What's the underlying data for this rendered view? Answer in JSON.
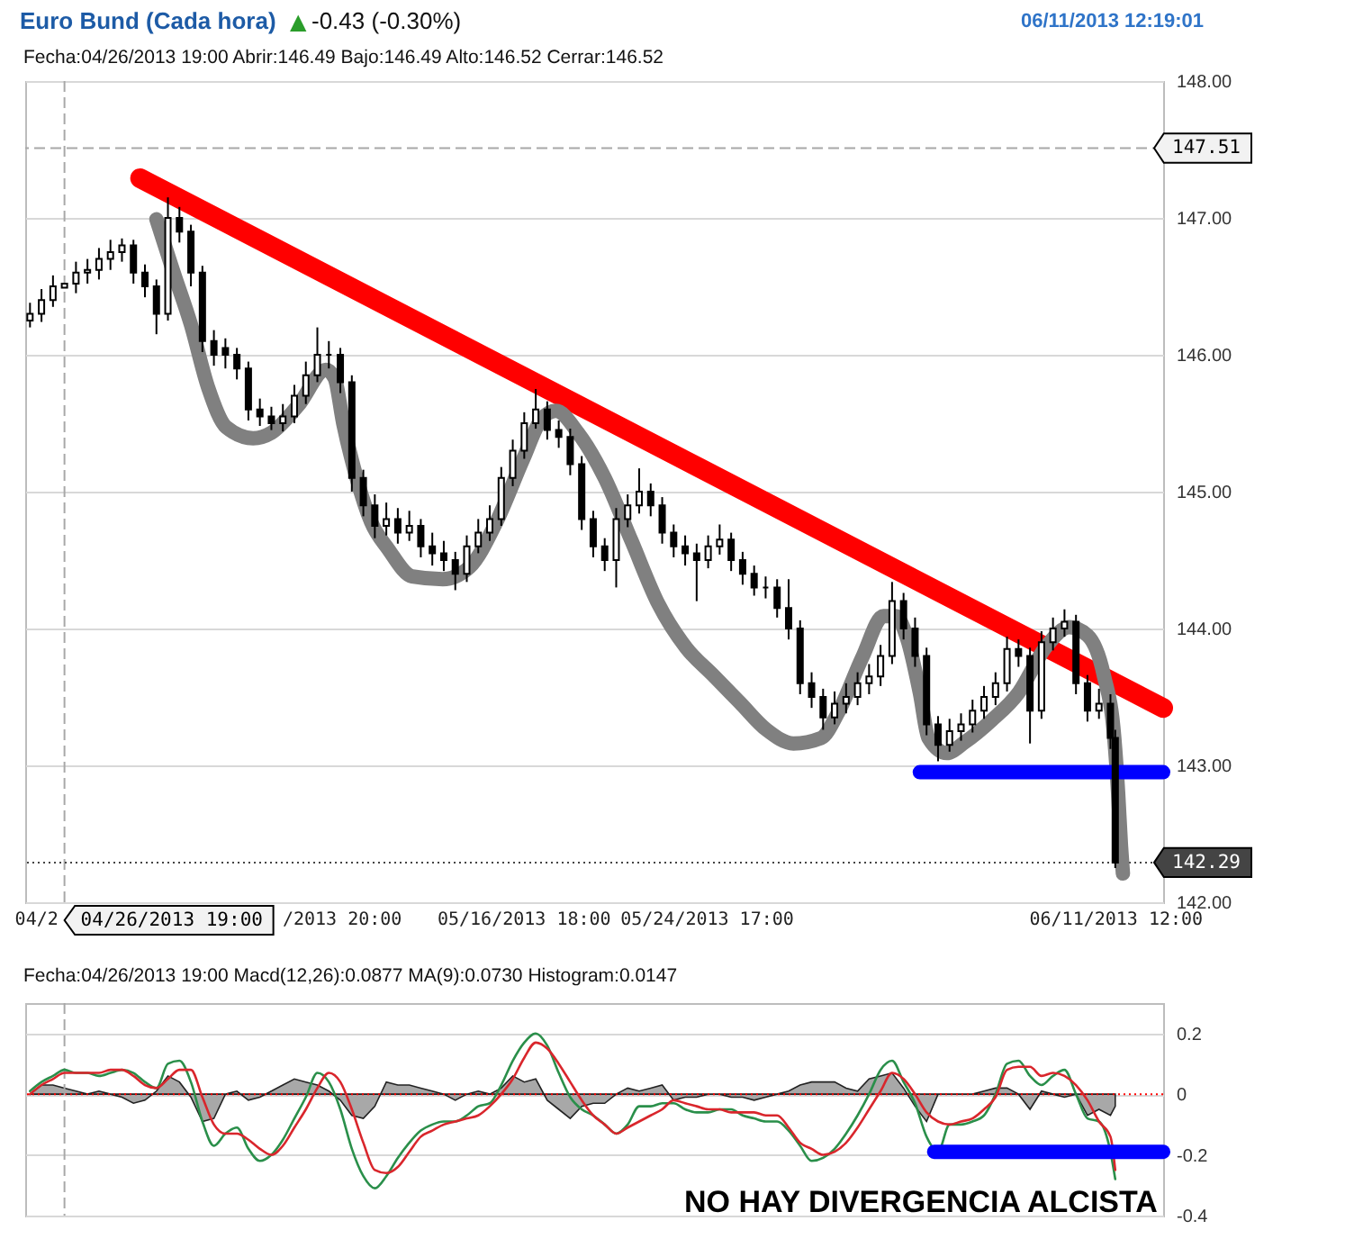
{
  "chart_data": [
    {
      "type": "candlestick",
      "title": "Euro Bund (Cada hora)",
      "subtitle": "▲ -0.43 (-0.30%)",
      "annotations": [
        "06/11/2013 12:19:01",
        "Fecha:04/26/2013 19:00 Abrir:146.49 Bajo:146.49 Alto:146.52 Cerrar:146.52"
      ],
      "color": "#000000",
      "x": [
        "2013-04-25T07:00",
        "2013-04-25T19:00",
        "2013-04-26T07:00",
        "2013-04-26T19:00",
        "2013-04-27T07:00",
        "2013-04-27T19:00",
        "2013-04-28T07:00",
        "2013-04-28T19:00",
        "2013-04-29T07:00",
        "2013-04-29T19:00",
        "2013-04-30T07:00",
        "2013-04-30T19:00",
        "2013-05-01T07:00",
        "2013-05-01T19:00",
        "2013-05-02T07:00",
        "2013-05-02T19:00",
        "2013-05-03T07:00",
        "2013-05-03T19:00",
        "2013-05-04T07:00",
        "2013-05-04T19:00",
        "2013-05-05T07:00",
        "2013-05-05T19:00",
        "2013-05-06T07:00",
        "2013-05-06T19:00",
        "2013-05-07T07:00",
        "2013-05-07T19:00",
        "2013-05-08T07:00",
        "2013-05-08T19:00",
        "2013-05-09T07:00",
        "2013-05-09T19:00",
        "2013-05-10T07:00",
        "2013-05-10T19:00",
        "2013-05-11T07:00",
        "2013-05-11T19:00",
        "2013-05-12T07:00",
        "2013-05-12T19:00",
        "2013-05-13T07:00",
        "2013-05-13T19:00",
        "2013-05-14T07:00",
        "2013-05-14T19:00",
        "2013-05-15T07:00",
        "2013-05-15T19:00",
        "2013-05-16T07:00",
        "2013-05-16T19:00",
        "2013-05-17T07:00",
        "2013-05-17T19:00",
        "2013-05-18T07:00",
        "2013-05-18T19:00",
        "2013-05-19T07:00",
        "2013-05-19T19:00",
        "2013-05-20T07:00",
        "2013-05-20T19:00",
        "2013-05-21T07:00",
        "2013-05-21T19:00",
        "2013-05-22T07:00",
        "2013-05-22T19:00",
        "2013-05-23T07:00",
        "2013-05-23T19:00",
        "2013-05-24T07:00",
        "2013-05-24T19:00",
        "2013-05-25T07:00",
        "2013-05-25T19:00",
        "2013-05-26T07:00",
        "2013-05-26T19:00",
        "2013-05-27T07:00",
        "2013-05-27T19:00",
        "2013-05-28T07:00",
        "2013-05-28T19:00",
        "2013-05-29T07:00",
        "2013-05-29T19:00",
        "2013-05-30T07:00",
        "2013-05-30T19:00",
        "2013-05-31T07:00",
        "2013-05-31T19:00",
        "2013-06-01T07:00",
        "2013-06-01T19:00",
        "2013-06-02T07:00",
        "2013-06-02T19:00",
        "2013-06-03T07:00",
        "2013-06-03T19:00",
        "2013-06-04T07:00",
        "2013-06-04T19:00",
        "2013-06-05T07:00",
        "2013-06-05T19:00",
        "2013-06-06T07:00",
        "2013-06-06T19:00",
        "2013-06-07T07:00",
        "2013-06-07T19:00",
        "2013-06-08T07:00",
        "2013-06-08T19:00",
        "2013-06-09T07:00",
        "2013-06-09T19:00",
        "2013-06-10T07:00",
        "2013-06-10T19:00",
        "2013-06-11T07:00",
        "2013-06-11T12:00"
      ],
      "ohlc": [
        [
          146.25,
          146.38,
          146.2,
          146.3
        ],
        [
          146.3,
          146.48,
          146.24,
          146.4
        ],
        [
          146.4,
          146.58,
          146.35,
          146.5
        ],
        [
          146.49,
          146.52,
          146.49,
          146.52
        ],
        [
          146.52,
          146.68,
          146.45,
          146.6
        ],
        [
          146.6,
          146.7,
          146.52,
          146.62
        ],
        [
          146.62,
          146.78,
          146.55,
          146.7
        ],
        [
          146.7,
          146.84,
          146.62,
          146.75
        ],
        [
          146.75,
          146.85,
          146.68,
          146.8
        ],
        [
          146.8,
          146.84,
          146.52,
          146.6
        ],
        [
          146.6,
          146.66,
          146.42,
          146.5
        ],
        [
          146.5,
          146.55,
          146.15,
          146.3
        ],
        [
          146.3,
          147.15,
          146.25,
          147.0
        ],
        [
          147.0,
          147.08,
          146.82,
          146.9
        ],
        [
          146.9,
          146.95,
          146.5,
          146.6
        ],
        [
          146.6,
          146.65,
          146.02,
          146.1
        ],
        [
          146.1,
          146.18,
          145.92,
          146.0
        ],
        [
          146.05,
          146.12,
          145.9,
          146.0
        ],
        [
          146.0,
          146.05,
          145.82,
          145.9
        ],
        [
          145.9,
          145.95,
          145.52,
          145.6
        ],
        [
          145.6,
          145.68,
          145.48,
          145.55
        ],
        [
          145.55,
          145.62,
          145.45,
          145.5
        ],
        [
          145.5,
          145.64,
          145.44,
          145.55
        ],
        [
          145.55,
          145.78,
          145.5,
          145.7
        ],
        [
          145.7,
          145.95,
          145.64,
          145.85
        ],
        [
          145.85,
          146.2,
          145.8,
          146.0
        ],
        [
          146.0,
          146.1,
          145.9,
          146.0
        ],
        [
          146.0,
          146.05,
          145.72,
          145.8
        ],
        [
          145.8,
          145.85,
          145.0,
          145.1
        ],
        [
          145.1,
          145.16,
          144.82,
          144.9
        ],
        [
          144.9,
          144.98,
          144.66,
          144.75
        ],
        [
          144.75,
          144.92,
          144.68,
          144.8
        ],
        [
          144.8,
          144.88,
          144.62,
          144.7
        ],
        [
          144.7,
          144.86,
          144.64,
          144.75
        ],
        [
          144.75,
          144.8,
          144.52,
          144.6
        ],
        [
          144.6,
          144.7,
          144.46,
          144.55
        ],
        [
          144.55,
          144.64,
          144.42,
          144.5
        ],
        [
          144.5,
          144.56,
          144.28,
          144.4
        ],
        [
          144.4,
          144.68,
          144.34,
          144.6
        ],
        [
          144.6,
          144.8,
          144.55,
          144.7
        ],
        [
          144.7,
          144.9,
          144.64,
          144.8
        ],
        [
          144.8,
          145.18,
          144.75,
          145.1
        ],
        [
          145.1,
          145.38,
          145.04,
          145.3
        ],
        [
          145.3,
          145.58,
          145.24,
          145.5
        ],
        [
          145.5,
          145.75,
          145.46,
          145.6
        ],
        [
          145.6,
          145.66,
          145.38,
          145.45
        ],
        [
          145.45,
          145.52,
          145.32,
          145.4
        ],
        [
          145.4,
          145.46,
          145.12,
          145.2
        ],
        [
          145.2,
          145.26,
          144.72,
          144.8
        ],
        [
          144.8,
          144.86,
          144.52,
          144.6
        ],
        [
          144.6,
          144.66,
          144.42,
          144.5
        ],
        [
          144.5,
          144.88,
          144.3,
          144.8
        ],
        [
          144.8,
          144.98,
          144.74,
          144.9
        ],
        [
          144.9,
          145.17,
          144.84,
          145.0
        ],
        [
          145.0,
          145.06,
          144.82,
          144.9
        ],
        [
          144.9,
          144.96,
          144.62,
          144.7
        ],
        [
          144.7,
          144.76,
          144.52,
          144.6
        ],
        [
          144.6,
          144.68,
          144.46,
          144.55
        ],
        [
          144.55,
          144.62,
          144.2,
          144.5
        ],
        [
          144.5,
          144.68,
          144.44,
          144.6
        ],
        [
          144.6,
          144.76,
          144.54,
          144.65
        ],
        [
          144.65,
          144.7,
          144.42,
          144.5
        ],
        [
          144.5,
          144.56,
          144.32,
          144.4
        ],
        [
          144.4,
          144.46,
          144.24,
          144.3
        ],
        [
          144.3,
          144.38,
          144.22,
          144.3
        ],
        [
          144.3,
          144.36,
          144.08,
          144.15
        ],
        [
          144.15,
          144.36,
          143.92,
          144.0
        ],
        [
          144.0,
          144.06,
          143.52,
          143.6
        ],
        [
          143.6,
          143.68,
          143.42,
          143.5
        ],
        [
          143.5,
          143.56,
          143.26,
          143.35
        ],
        [
          143.35,
          143.54,
          143.3,
          143.45
        ],
        [
          143.45,
          143.6,
          143.38,
          143.5
        ],
        [
          143.5,
          143.68,
          143.44,
          143.6
        ],
        [
          143.6,
          143.74,
          143.52,
          143.65
        ],
        [
          143.65,
          143.88,
          143.58,
          143.8
        ],
        [
          143.8,
          144.34,
          143.74,
          144.2
        ],
        [
          144.2,
          144.26,
          143.92,
          144.0
        ],
        [
          144.0,
          144.08,
          143.72,
          143.8
        ],
        [
          143.8,
          143.86,
          143.22,
          143.3
        ],
        [
          143.3,
          143.36,
          143.03,
          143.15
        ],
        [
          143.15,
          143.34,
          143.1,
          143.25
        ],
        [
          143.25,
          143.38,
          143.18,
          143.3
        ],
        [
          143.3,
          143.48,
          143.24,
          143.4
        ],
        [
          143.4,
          143.58,
          143.34,
          143.5
        ],
        [
          143.5,
          143.68,
          143.44,
          143.6
        ],
        [
          143.6,
          143.94,
          143.54,
          143.85
        ],
        [
          143.85,
          143.92,
          143.72,
          143.8
        ],
        [
          143.8,
          143.86,
          143.16,
          143.4
        ],
        [
          143.4,
          143.98,
          143.34,
          143.9
        ],
        [
          143.9,
          144.08,
          143.84,
          144.0
        ],
        [
          144.0,
          144.14,
          143.94,
          144.05
        ],
        [
          144.05,
          144.1,
          143.52,
          143.6
        ],
        [
          143.6,
          143.66,
          143.32,
          143.4
        ],
        [
          143.4,
          143.56,
          143.34,
          143.45
        ],
        [
          143.45,
          143.52,
          143.12,
          143.2
        ],
        [
          143.2,
          143.26,
          142.25,
          142.29
        ]
      ],
      "series": [
        {
          "type": "line",
          "color": "#ff0000",
          "x": [
            "2013-04-30T02:00",
            "2013-06-13T14:00"
          ],
          "values": [
            147.29,
            143.42
          ]
        },
        {
          "type": "line",
          "color": "#808080",
          "x": [
            "2013-04-30T19:00",
            "2013-05-01T12:00",
            "2013-05-02T07:00",
            "2013-05-03T01:00",
            "2013-05-03T20:00",
            "2013-05-05T00:00",
            "2013-05-05T19:00",
            "2013-05-06T23:00",
            "2013-05-08T04:00",
            "2013-05-08T13:00",
            "2013-05-08T22:00",
            "2013-05-09T12:00",
            "2013-05-10T03:00",
            "2013-05-10T21:00",
            "2013-05-11T22:00",
            "2013-05-13T06:00",
            "2013-05-14T10:00",
            "2013-05-15T14:00",
            "2013-05-16T18:00",
            "2013-05-17T13:00",
            "2013-05-18T04:00",
            "2013-05-19T03:00",
            "2013-05-20T07:00",
            "2013-05-21T11:00",
            "2013-05-22T15:00",
            "2013-05-23T20:00",
            "2013-05-25T00:00",
            "2013-05-26T04:00",
            "2013-05-27T08:00",
            "2013-05-28T12:00",
            "2013-05-29T17:00",
            "2013-05-30T11:00",
            "2013-05-31T12:00",
            "2013-06-01T10:00",
            "2013-06-01T23:00",
            "2013-06-02T11:00",
            "2013-06-03T00:00",
            "2013-06-03T09:00",
            "2013-06-04T04:00",
            "2013-06-04T23:00",
            "2013-06-06T03:00",
            "2013-06-07T07:00",
            "2013-06-08T11:00",
            "2013-06-09T12:00",
            "2013-06-10T07:00",
            "2013-06-11T00:00",
            "2013-06-11T11:00",
            "2013-06-11T15:00",
            "2013-06-11T18:00",
            "2013-06-11T20:00"
          ],
          "values": [
            146.99,
            146.62,
            146.22,
            145.76,
            145.47,
            145.39,
            145.43,
            145.63,
            145.89,
            145.83,
            145.5,
            145.1,
            144.78,
            144.58,
            144.38,
            144.36,
            144.45,
            144.78,
            145.24,
            145.53,
            145.59,
            145.43,
            145.1,
            144.64,
            144.18,
            143.86,
            143.66,
            143.46,
            143.26,
            143.16,
            143.2,
            143.39,
            143.79,
            144.09,
            144.09,
            143.92,
            143.53,
            143.2,
            143.09,
            143.17,
            143.33,
            143.53,
            143.86,
            144.01,
            143.95,
            143.66,
            143.2,
            142.8,
            142.41,
            142.21
          ]
        },
        {
          "type": "line",
          "color": "#0000ff",
          "x": [
            "2013-06-03T00:00",
            "2013-06-13T14:00"
          ],
          "values": [
            142.95,
            142.95
          ]
        }
      ],
      "xlim": [
        "2013-04-25T02:00",
        "2013-06-13T14:00"
      ],
      "xticks": [
        {
          "value": "2013-04-25T13:00",
          "label": "04/2"
        },
        {
          "value": "2013-05-08T20:00",
          "label": "/2013 20:00"
        },
        {
          "value": "2013-05-16T18:00",
          "label": "05/16/2013 18:00"
        },
        {
          "value": "2013-05-24T17:00",
          "label": "05/24/2013 17:00"
        },
        {
          "value": "2013-06-11T12:00",
          "label": "06/11/2013 12:00"
        }
      ],
      "ylim": [
        142,
        148
      ],
      "yticks": [
        {
          "value": 142,
          "label": "142.00"
        },
        {
          "value": 143,
          "label": "143.00"
        },
        {
          "value": 144,
          "label": "144.00"
        },
        {
          "value": 145,
          "label": "145.00"
        },
        {
          "value": 146,
          "label": "146.00"
        },
        {
          "value": 147,
          "label": "147.00"
        },
        {
          "value": 148,
          "label": "148.00"
        }
      ],
      "ref_lines": [
        {
          "axis": "x",
          "value": "2013-04-26T19:00",
          "label": "04/26/2013 19:00",
          "color": "#a8a8a8",
          "line_style": "dashed"
        },
        {
          "axis": "y",
          "value": 147.51,
          "label": "147.51",
          "color": "#a8a8a8",
          "line_style": "dashed"
        },
        {
          "axis": "y",
          "value": 142.29,
          "label": "142.29",
          "color": "#444444",
          "line_style": "dotted"
        }
      ],
      "grid": "y"
    },
    {
      "type": "line",
      "annotations": [
        "Fecha:04/26/2013 19:00 Macd(12,26):0.0877 MA(9):0.0730 Histogram:0.0147",
        "NO HAY DIVERGENCIA ALCISTA"
      ],
      "x": [
        "2013-04-25T07:00",
        "2013-04-25T19:00",
        "2013-04-26T07:00",
        "2013-04-26T19:00",
        "2013-04-27T07:00",
        "2013-04-27T19:00",
        "2013-04-28T07:00",
        "2013-04-28T19:00",
        "2013-04-29T07:00",
        "2013-04-29T19:00",
        "2013-04-30T07:00",
        "2013-04-30T19:00",
        "2013-05-01T07:00",
        "2013-05-01T19:00",
        "2013-05-02T07:00",
        "2013-05-02T19:00",
        "2013-05-03T07:00",
        "2013-05-03T19:00",
        "2013-05-04T07:00",
        "2013-05-04T19:00",
        "2013-05-05T07:00",
        "2013-05-05T19:00",
        "2013-05-06T07:00",
        "2013-05-06T19:00",
        "2013-05-07T07:00",
        "2013-05-07T19:00",
        "2013-05-08T07:00",
        "2013-05-08T19:00",
        "2013-05-09T07:00",
        "2013-05-09T19:00",
        "2013-05-10T07:00",
        "2013-05-10T19:00",
        "2013-05-11T07:00",
        "2013-05-11T19:00",
        "2013-05-12T07:00",
        "2013-05-12T19:00",
        "2013-05-13T07:00",
        "2013-05-13T19:00",
        "2013-05-14T07:00",
        "2013-05-14T19:00",
        "2013-05-15T07:00",
        "2013-05-15T19:00",
        "2013-05-16T07:00",
        "2013-05-16T19:00",
        "2013-05-17T07:00",
        "2013-05-17T19:00",
        "2013-05-18T07:00",
        "2013-05-18T19:00",
        "2013-05-19T07:00",
        "2013-05-19T19:00",
        "2013-05-20T07:00",
        "2013-05-20T19:00",
        "2013-05-21T07:00",
        "2013-05-21T19:00",
        "2013-05-22T07:00",
        "2013-05-22T19:00",
        "2013-05-23T07:00",
        "2013-05-23T19:00",
        "2013-05-24T07:00",
        "2013-05-24T19:00",
        "2013-05-25T07:00",
        "2013-05-25T19:00",
        "2013-05-26T07:00",
        "2013-05-26T19:00",
        "2013-05-27T07:00",
        "2013-05-27T19:00",
        "2013-05-28T07:00",
        "2013-05-28T19:00",
        "2013-05-29T07:00",
        "2013-05-29T19:00",
        "2013-05-30T07:00",
        "2013-05-30T19:00",
        "2013-05-31T07:00",
        "2013-05-31T19:00",
        "2013-06-01T07:00",
        "2013-06-01T19:00",
        "2013-06-02T07:00",
        "2013-06-02T19:00",
        "2013-06-03T07:00",
        "2013-06-03T19:00",
        "2013-06-04T07:00",
        "2013-06-04T19:00",
        "2013-06-05T07:00",
        "2013-06-05T19:00",
        "2013-06-06T07:00",
        "2013-06-06T19:00",
        "2013-06-07T07:00",
        "2013-06-07T19:00",
        "2013-06-08T07:00",
        "2013-06-08T19:00",
        "2013-06-09T07:00",
        "2013-06-09T19:00",
        "2013-06-10T07:00",
        "2013-06-10T19:00",
        "2013-06-11T07:00",
        "2013-06-11T12:00"
      ],
      "series": [
        {
          "type": "area",
          "color": "#a8a8a8",
          "values": [
            0.0,
            0.03,
            0.03,
            0.02,
            0.01,
            0.0,
            0.01,
            0.0,
            -0.01,
            -0.03,
            -0.02,
            0.01,
            0.06,
            0.04,
            -0.01,
            -0.09,
            -0.08,
            0.0,
            0.01,
            -0.02,
            -0.01,
            0.01,
            0.03,
            0.05,
            0.04,
            0.03,
            0.01,
            -0.02,
            -0.07,
            -0.08,
            -0.04,
            0.04,
            0.03,
            0.03,
            0.02,
            0.01,
            0.0,
            -0.02,
            0.0,
            0.01,
            0.0,
            0.02,
            0.06,
            0.04,
            0.05,
            -0.02,
            -0.05,
            -0.08,
            -0.04,
            -0.03,
            -0.03,
            0.0,
            0.02,
            0.01,
            0.02,
            0.03,
            -0.02,
            -0.01,
            -0.01,
            0.0,
            0.0,
            -0.01,
            -0.01,
            -0.02,
            -0.01,
            0.0,
            0.01,
            0.03,
            0.04,
            0.04,
            0.04,
            0.02,
            0.01,
            0.05,
            0.06,
            0.07,
            0.02,
            -0.04,
            -0.09,
            0.0,
            0.0,
            0.0,
            0.0,
            0.01,
            0.02,
            0.02,
            0.0,
            -0.05,
            0.01,
            0.0,
            -0.01,
            0.0,
            -0.07,
            -0.05,
            -0.07,
            -0.04
          ]
        },
        {
          "type": "line",
          "color": "#2a8f4a",
          "values": [
            0.01,
            0.04,
            0.06,
            0.08,
            0.07,
            0.07,
            0.06,
            0.07,
            0.08,
            0.07,
            0.04,
            0.02,
            0.1,
            0.11,
            0.04,
            -0.09,
            -0.17,
            -0.13,
            -0.11,
            -0.18,
            -0.22,
            -0.2,
            -0.15,
            -0.08,
            -0.01,
            0.07,
            0.04,
            -0.05,
            -0.18,
            -0.27,
            -0.31,
            -0.27,
            -0.21,
            -0.16,
            -0.12,
            -0.1,
            -0.09,
            -0.09,
            -0.07,
            -0.04,
            -0.03,
            0.03,
            0.11,
            0.17,
            0.2,
            0.16,
            0.07,
            -0.01,
            -0.05,
            -0.07,
            -0.1,
            -0.13,
            -0.1,
            -0.04,
            -0.04,
            -0.03,
            -0.03,
            -0.05,
            -0.06,
            -0.06,
            -0.05,
            -0.05,
            -0.07,
            -0.08,
            -0.09,
            -0.09,
            -0.12,
            -0.17,
            -0.22,
            -0.21,
            -0.18,
            -0.13,
            -0.07,
            0.0,
            0.08,
            0.11,
            0.04,
            -0.03,
            -0.14,
            -0.19,
            -0.1,
            -0.1,
            -0.09,
            -0.07,
            0.0,
            0.1,
            0.11,
            0.06,
            0.03,
            0.06,
            0.08,
            0.0,
            -0.08,
            -0.09,
            -0.19,
            -0.28
          ]
        },
        {
          "type": "line",
          "color": "#d9262c",
          "values": [
            0.0,
            0.03,
            0.05,
            0.07,
            0.07,
            0.07,
            0.07,
            0.08,
            0.08,
            0.06,
            0.03,
            0.02,
            0.05,
            0.08,
            0.08,
            -0.01,
            -0.1,
            -0.13,
            -0.13,
            -0.15,
            -0.18,
            -0.2,
            -0.17,
            -0.11,
            -0.05,
            0.02,
            0.07,
            0.04,
            -0.05,
            -0.16,
            -0.25,
            -0.26,
            -0.24,
            -0.19,
            -0.14,
            -0.12,
            -0.1,
            -0.09,
            -0.08,
            -0.07,
            -0.04,
            0.0,
            0.05,
            0.12,
            0.17,
            0.15,
            0.1,
            0.04,
            -0.02,
            -0.07,
            -0.1,
            -0.13,
            -0.11,
            -0.09,
            -0.07,
            -0.05,
            -0.02,
            -0.03,
            -0.04,
            -0.05,
            -0.05,
            -0.06,
            -0.06,
            -0.06,
            -0.07,
            -0.07,
            -0.11,
            -0.16,
            -0.18,
            -0.2,
            -0.19,
            -0.16,
            -0.11,
            -0.05,
            0.01,
            0.07,
            0.05,
            0.0,
            -0.06,
            -0.09,
            -0.1,
            -0.09,
            -0.08,
            -0.05,
            -0.01,
            0.08,
            0.09,
            0.09,
            0.06,
            0.07,
            0.06,
            0.03,
            -0.02,
            -0.09,
            -0.14,
            -0.25
          ]
        },
        {
          "type": "line",
          "color": "#0000ff",
          "x": [
            "2013-06-03T15:00",
            "2013-06-13T14:00"
          ],
          "values": [
            -0.19,
            -0.19
          ]
        }
      ],
      "xlim": [
        "2013-04-25T02:00",
        "2013-06-13T14:00"
      ],
      "ylim": [
        -0.4,
        0.3
      ],
      "yticks": [
        0.2,
        0,
        -0.2,
        -0.4
      ],
      "ref_lines": [
        {
          "axis": "y",
          "value": 0,
          "color": "#ff0000",
          "line_style": "dotted"
        },
        {
          "axis": "x",
          "value": "2013-04-26T19:00",
          "color": "#a8a8a8",
          "line_style": "dashed"
        }
      ],
      "tick_labels": "y",
      "grid": "y"
    }
  ]
}
